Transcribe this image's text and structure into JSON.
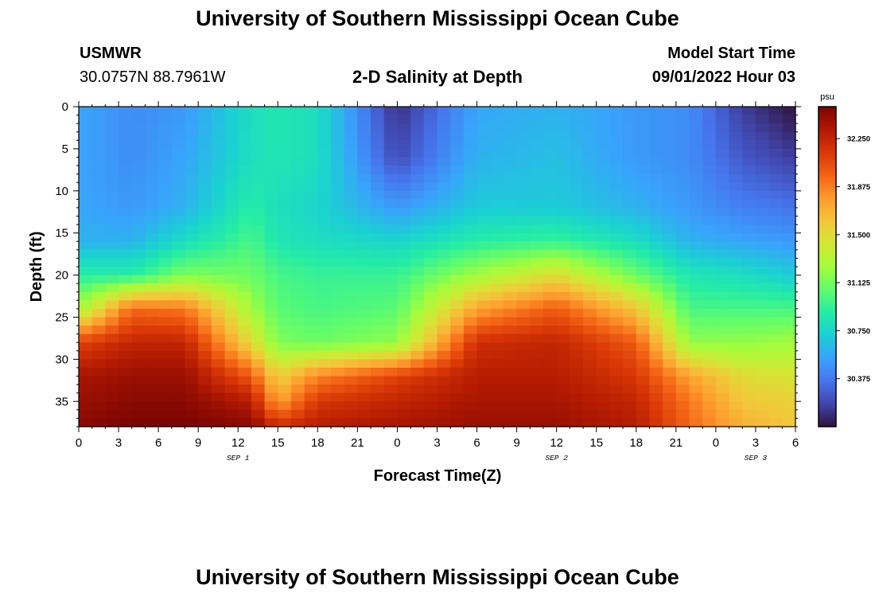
{
  "header": {
    "title": "University of Southern Mississippi Ocean Cube",
    "station": "USMWR",
    "coords": "30.0757N  88.7961W",
    "subtitle": "2-D Salinity at Depth",
    "model_label": "Model Start Time",
    "model_time": "09/01/2022 Hour 03"
  },
  "footer": {
    "title": "University of Southern Mississippi Ocean Cube"
  },
  "chart_data": {
    "type": "heatmap",
    "xlabel": "Forecast Time(Z)",
    "ylabel": "Depth (ft)",
    "x_ticks": [
      "0",
      "3",
      "6",
      "9",
      "12",
      "15",
      "18",
      "21",
      "0",
      "3",
      "6",
      "9",
      "12",
      "15",
      "18",
      "21",
      "0",
      "3",
      "6"
    ],
    "x_range_hours": [
      0,
      54
    ],
    "date_labels": [
      {
        "text": "SEP 1",
        "hour": 12
      },
      {
        "text": "SEP 2",
        "hour": 36
      },
      {
        "text": "SEP 3",
        "hour": 51
      }
    ],
    "y_ticks": [
      0,
      5,
      10,
      15,
      20,
      25,
      30,
      35
    ],
    "y_range": [
      0,
      38
    ],
    "colorbar": {
      "unit": "psu",
      "ticks": [
        "32.250",
        "31.875",
        "31.500",
        "31.125",
        "30.750",
        "30.375"
      ],
      "tick_values": [
        32.25,
        31.875,
        31.5,
        31.125,
        30.75,
        30.375
      ],
      "range": [
        30.0,
        32.5
      ],
      "colors": [
        "#30123b",
        "#4145ab",
        "#4675ed",
        "#39a2fc",
        "#1bcfd4",
        "#24eca6",
        "#61fc6c",
        "#a4fc3b",
        "#d1e834",
        "#f3c63a",
        "#fe9b2d",
        "#f36315",
        "#d93806",
        "#b11901",
        "#7a0403"
      ]
    },
    "salinity_anchor_hours": [
      0,
      4,
      8,
      13,
      15,
      18,
      24,
      30,
      36,
      42,
      46,
      50,
      54
    ],
    "salinity_anchor_depths": [
      0,
      6,
      12,
      16,
      20,
      24,
      28,
      32,
      35,
      38
    ],
    "salinity_psu": [
      [
        30.55,
        30.55,
        30.55,
        30.6,
        30.9,
        31.25,
        32.1,
        32.35,
        32.4,
        32.45
      ],
      [
        30.45,
        30.45,
        30.5,
        30.6,
        30.9,
        31.95,
        32.25,
        32.4,
        32.45,
        32.5
      ],
      [
        30.5,
        30.55,
        30.6,
        30.8,
        31.15,
        31.9,
        32.25,
        32.4,
        32.45,
        32.5
      ],
      [
        30.8,
        30.8,
        30.9,
        31.0,
        31.1,
        31.25,
        31.5,
        32.0,
        32.3,
        32.45
      ],
      [
        30.85,
        30.85,
        30.8,
        30.85,
        31.0,
        31.05,
        31.15,
        31.55,
        31.75,
        32.2
      ],
      [
        30.8,
        30.8,
        30.75,
        30.8,
        30.95,
        31.0,
        31.1,
        31.85,
        32.15,
        32.3
      ],
      [
        30.1,
        30.2,
        30.5,
        30.75,
        30.95,
        31.05,
        31.2,
        32.1,
        32.25,
        32.35
      ],
      [
        30.55,
        30.6,
        30.7,
        30.9,
        31.25,
        31.75,
        32.2,
        32.3,
        32.35,
        32.4
      ],
      [
        30.6,
        30.65,
        30.7,
        30.95,
        31.5,
        32.0,
        32.25,
        32.3,
        32.35,
        32.4
      ],
      [
        30.5,
        30.5,
        30.6,
        30.8,
        31.1,
        31.6,
        32.0,
        32.15,
        32.25,
        32.3
      ],
      [
        30.45,
        30.45,
        30.5,
        30.6,
        30.85,
        31.0,
        31.2,
        31.75,
        31.9,
        31.95
      ],
      [
        30.15,
        30.25,
        30.4,
        30.55,
        30.8,
        31.0,
        31.2,
        31.5,
        31.6,
        31.7
      ],
      [
        30.0,
        30.15,
        30.35,
        30.5,
        30.7,
        31.0,
        31.25,
        31.45,
        31.55,
        31.6
      ]
    ]
  }
}
